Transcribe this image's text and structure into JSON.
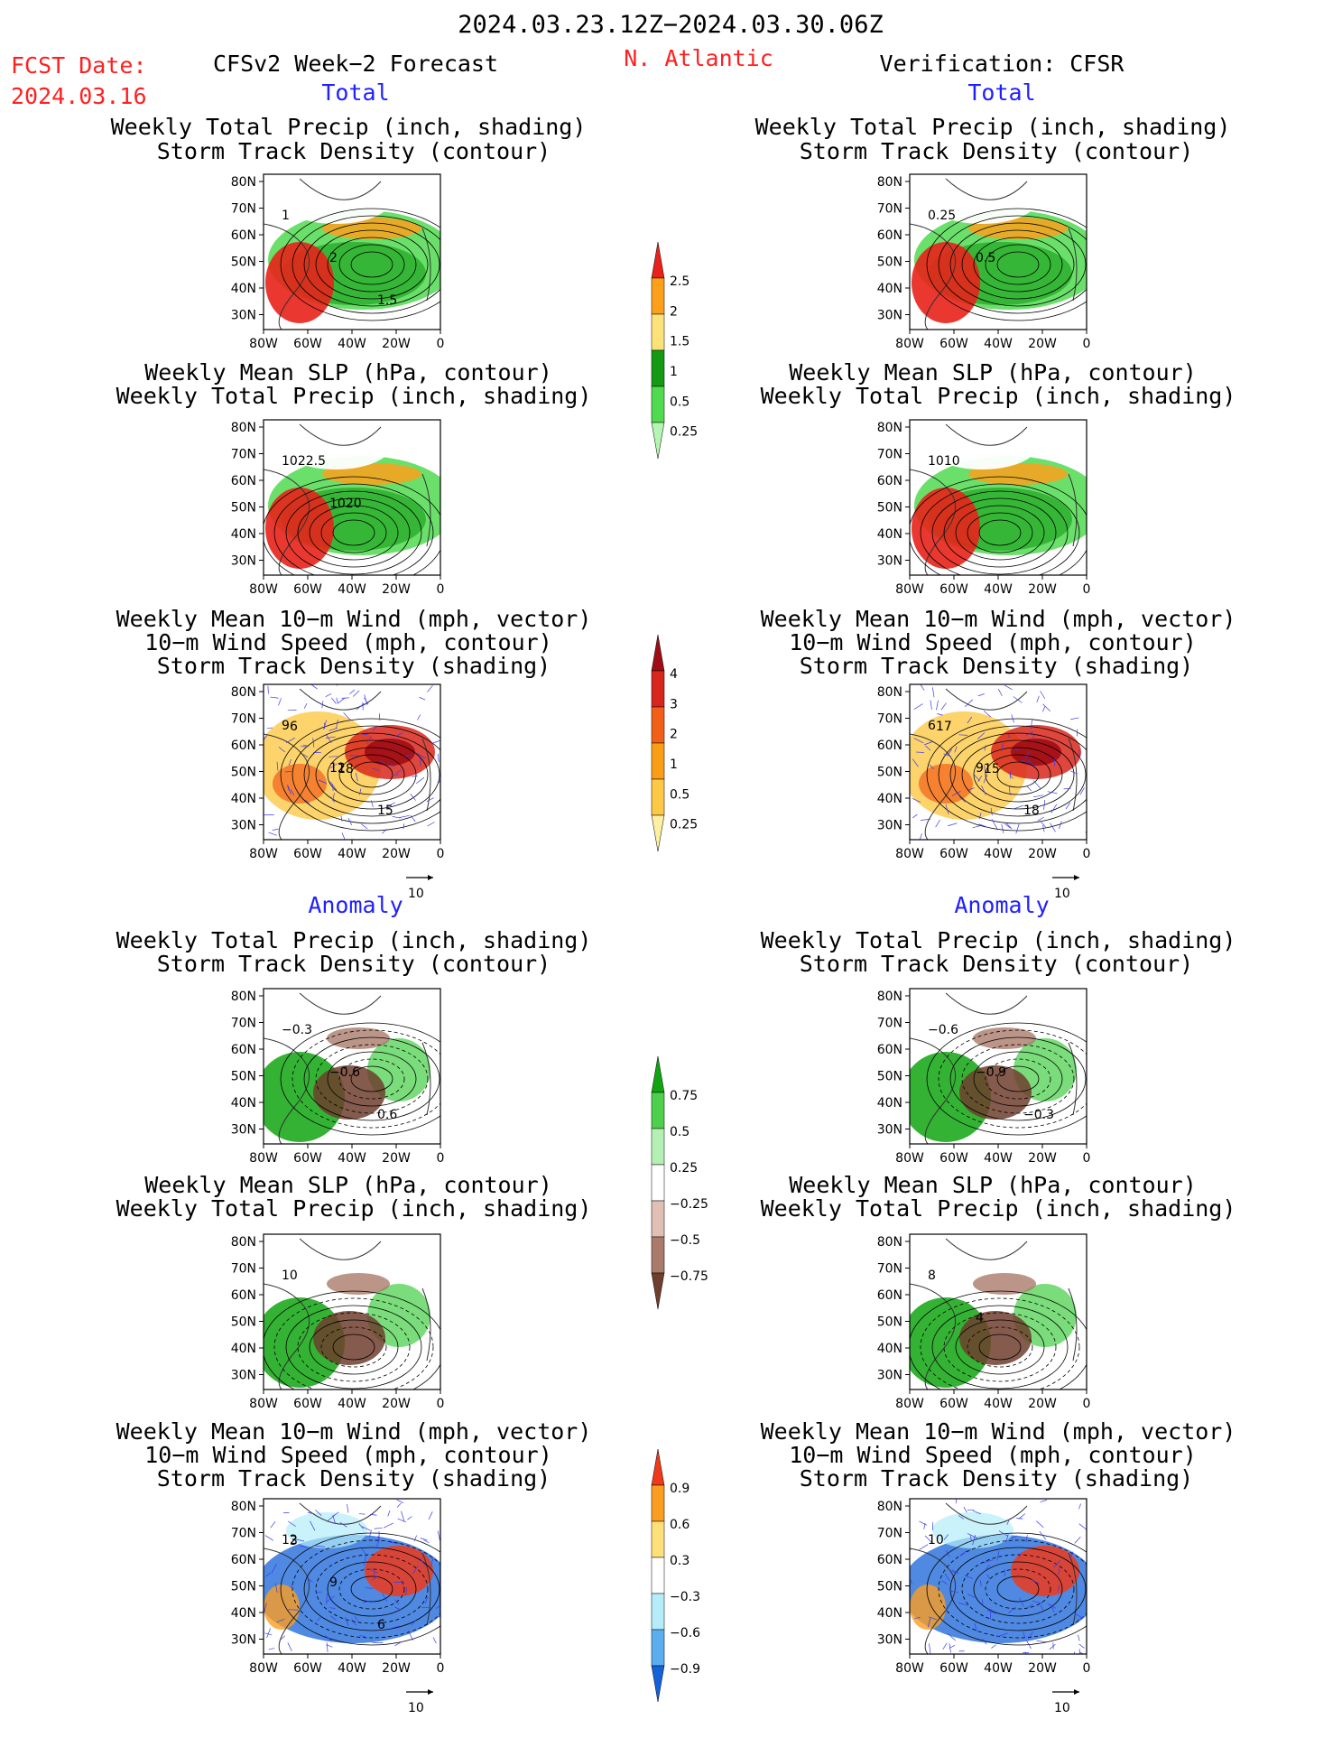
{
  "header": {
    "period": "2024.03.23.12Z−2024.03.30.06Z",
    "fcst_label": "FCST Date:",
    "fcst_date": "2024.03.16",
    "left_title": "CFSv2 Week−2 Forecast",
    "region": "N. Atlantic",
    "right_title": "Verification: CFSR",
    "total_label": "Total",
    "anomaly_label": "Anomaly"
  },
  "panel_titles": {
    "precip_storm": [
      "Weekly Total Precip (inch, shading)",
      "Storm Track Density (contour)"
    ],
    "slp_precip": [
      "Weekly Mean SLP (hPa, contour)",
      "Weekly Total Precip (inch, shading)"
    ],
    "wind_storm": [
      "Weekly Mean 10−m Wind (mph, vector)",
      "10−m Wind Speed (mph, contour)",
      "Storm Track Density (shading)"
    ]
  },
  "axes": {
    "lat_ticks": [
      "80N",
      "70N",
      "60N",
      "50N",
      "40N",
      "30N"
    ],
    "lon_ticks": [
      "80W",
      "60W",
      "40W",
      "20W",
      "0"
    ],
    "vector_ref": "10"
  },
  "chart_data": [
    {
      "type": "heatmap",
      "column": "forecast",
      "section": "total",
      "title": [
        "Weekly Total Precip (inch, shading)",
        "Storm Track Density (contour)"
      ],
      "contour_labels": [
        "1",
        "2",
        "1.5"
      ]
    },
    {
      "type": "heatmap",
      "column": "verification",
      "section": "total",
      "title": [
        "Weekly Total Precip (inch, shading)",
        "Storm Track Density (contour)"
      ],
      "contour_labels": [
        "0.25",
        "0.5"
      ]
    },
    {
      "type": "heatmap",
      "column": "forecast",
      "section": "total",
      "title": [
        "Weekly Mean SLP (hPa, contour)",
        "Weekly Total Precip (inch, shading)"
      ],
      "contour_labels": [
        "1022.5",
        "1020"
      ]
    },
    {
      "type": "heatmap",
      "column": "verification",
      "section": "total",
      "title": [
        "Weekly Mean SLP (hPa, contour)",
        "Weekly Total Precip (inch, shading)"
      ],
      "contour_labels": [
        "1010"
      ]
    },
    {
      "type": "heatmap",
      "column": "forecast",
      "section": "total",
      "title": [
        "Weekly Mean 10−m Wind (mph, vector)",
        "10−m Wind Speed (mph, contour)",
        "Storm Track Density (shading)"
      ],
      "contour_labels": [
        "9",
        "12",
        "15",
        "6",
        "18"
      ]
    },
    {
      "type": "heatmap",
      "column": "verification",
      "section": "total",
      "title": [
        "Weekly Mean 10−m Wind (mph, vector)",
        "10−m Wind Speed (mph, contour)",
        "Storm Track Density (shading)"
      ],
      "contour_labels": [
        "6",
        "9",
        "18",
        "17",
        "15"
      ]
    },
    {
      "type": "heatmap",
      "column": "forecast",
      "section": "anomaly",
      "title": [
        "Weekly Total Precip (inch, shading)",
        "Storm Track Density (contour)"
      ],
      "contour_labels": [
        "−0.3",
        "−0.6",
        "0.6"
      ]
    },
    {
      "type": "heatmap",
      "column": "verification",
      "section": "anomaly",
      "title": [
        "Weekly Total Precip (inch, shading)",
        "Storm Track Density (contour)"
      ],
      "contour_labels": [
        "−0.6",
        "−0.9",
        "−0.3"
      ]
    },
    {
      "type": "heatmap",
      "column": "forecast",
      "section": "anomaly",
      "title": [
        "Weekly Mean SLP (hPa, contour)",
        "Weekly Total Precip (inch, shading)"
      ],
      "contour_labels": [
        "10"
      ]
    },
    {
      "type": "heatmap",
      "column": "verification",
      "section": "anomaly",
      "title": [
        "Weekly Mean SLP (hPa, contour)",
        "Weekly Total Precip (inch, shading)"
      ],
      "contour_labels": [
        "8",
        "4"
      ]
    },
    {
      "type": "heatmap",
      "column": "forecast",
      "section": "anomaly",
      "title": [
        "Weekly Mean 10−m Wind (mph, vector)",
        "10−m Wind Speed (mph, contour)",
        "Storm Track Density (shading)"
      ],
      "contour_labels": [
        "12",
        "9",
        "6",
        "3"
      ]
    },
    {
      "type": "heatmap",
      "column": "verification",
      "section": "anomaly",
      "title": [
        "Weekly Mean 10−m Wind (mph, vector)",
        "10−m Wind Speed (mph, contour)",
        "Storm Track Density (shading)"
      ],
      "contour_labels": [
        "10"
      ]
    }
  ],
  "colorbars": [
    {
      "name": "precip-total",
      "labels": [
        "2.5",
        "2",
        "1.5",
        "1",
        "0.5",
        "0.25"
      ],
      "colors": [
        "#e8221a",
        "#fca01c",
        "#fde27a",
        "#149a14",
        "#50da50",
        "#b4f5b4"
      ]
    },
    {
      "name": "storm-density-total",
      "labels": [
        "4",
        "3",
        "2",
        "1",
        "0.5",
        "0.25"
      ],
      "colors": [
        "#a00c14",
        "#d8261c",
        "#f26018",
        "#fa9e16",
        "#fcc846",
        "#fdf0a2"
      ]
    },
    {
      "name": "precip-anomaly",
      "labels": [
        "0.75",
        "0.5",
        "0.25",
        "−0.25",
        "−0.5",
        "−0.75"
      ],
      "colors": [
        "#11a411",
        "#4ed04e",
        "#b4f0b4",
        "#ffffff",
        "#e0c0b4",
        "#aa7a6a",
        "#6e3e2e"
      ]
    },
    {
      "name": "storm-density-anomaly",
      "labels": [
        "0.9",
        "0.6",
        "0.3",
        "−0.3",
        "−0.6",
        "−0.9"
      ],
      "colors": [
        "#ee3a1a",
        "#fb9e20",
        "#fde07a",
        "#ffffff",
        "#b4ecfa",
        "#5aaef0",
        "#1462d8"
      ]
    }
  ]
}
